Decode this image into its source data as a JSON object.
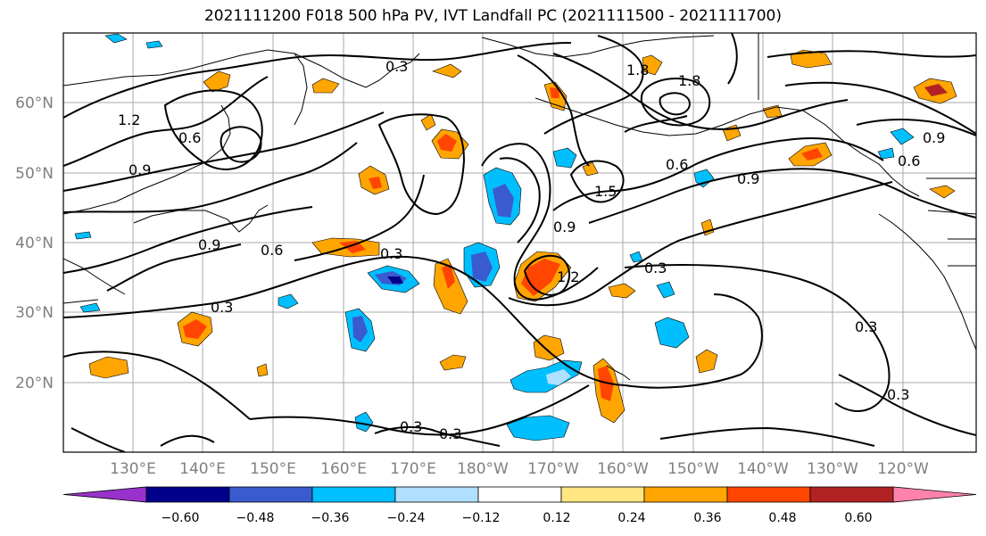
{
  "title": "2021111200 F018 500 hPa PV, IVT Landfall PC (2021111500 - 2021111700)",
  "lat_labels": [
    "60°N",
    "50°N",
    "40°N",
    "30°N",
    "20°N"
  ],
  "lon_labels": [
    "130°E",
    "140°E",
    "150°E",
    "160°E",
    "170°E",
    "180°W",
    "170°W",
    "160°W",
    "150°W",
    "140°W",
    "130°W",
    "120°W"
  ],
  "colorbar": {
    "colors": [
      "#9932cc",
      "#00008b",
      "#3a5bcf",
      "#00bfff",
      "#b0e0ff",
      "#ffffff",
      "#ffe680",
      "#ffa500",
      "#ff4500",
      "#b22222",
      "#ff82ab"
    ],
    "ticks": [
      "−0.60",
      "−0.48",
      "−0.36",
      "−0.24",
      "−0.12",
      "0.12",
      "0.24",
      "0.36",
      "0.48",
      "0.60"
    ]
  },
  "contour_labels": [
    "0.3",
    "0.3",
    "0.3",
    "0.3",
    "0.3",
    "0.3",
    "0.3",
    "0.3",
    "0.6",
    "0.6",
    "0.6",
    "0.6",
    "0.9",
    "0.9",
    "0.9",
    "0.9",
    "0.9",
    "1.2",
    "1.2",
    "1.5",
    "1.8",
    "1.8"
  ],
  "map": {
    "lat_range": [
      10,
      70
    ],
    "lon_range": [
      120,
      252
    ],
    "pv_contours": "solid black",
    "ivt_shading": "filled"
  }
}
